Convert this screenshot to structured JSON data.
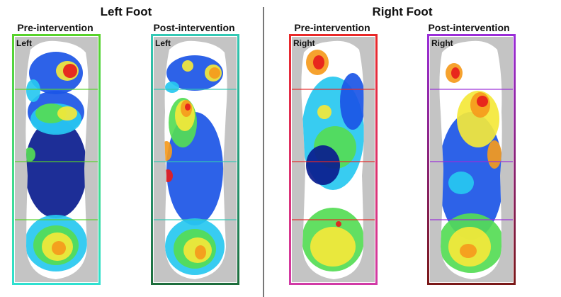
{
  "groups": [
    {
      "title": "Left Foot"
    },
    {
      "title": "Right Foot"
    }
  ],
  "panels": [
    {
      "title": "Pre-intervention",
      "side_label": "Left",
      "frame_top": "#58d22a",
      "frame_bottom": "#2ee0d0",
      "foot": "left"
    },
    {
      "title": "Post-intervention",
      "side_label": "Left",
      "frame_top": "#33c8b4",
      "frame_bottom": "#1d6d3c",
      "foot": "left"
    },
    {
      "title": "Pre-intervention",
      "side_label": "Right",
      "frame_top": "#e82828",
      "frame_bottom": "#d13aa6",
      "foot": "right"
    },
    {
      "title": "Post-intervention",
      "side_label": "Right",
      "frame_top": "#9a2dd8",
      "frame_bottom": "#7a1818",
      "foot": "right"
    }
  ],
  "colors": {
    "deep_blue": "#0a1c8e",
    "blue": "#1b55e6",
    "cyan": "#27c8f0",
    "green": "#55dc55",
    "yellow": "#f4e83a",
    "orange": "#f59a1c",
    "red": "#e61c1c",
    "dark_red": "#a40c0c",
    "outline_gray": "#c4c4c4"
  }
}
